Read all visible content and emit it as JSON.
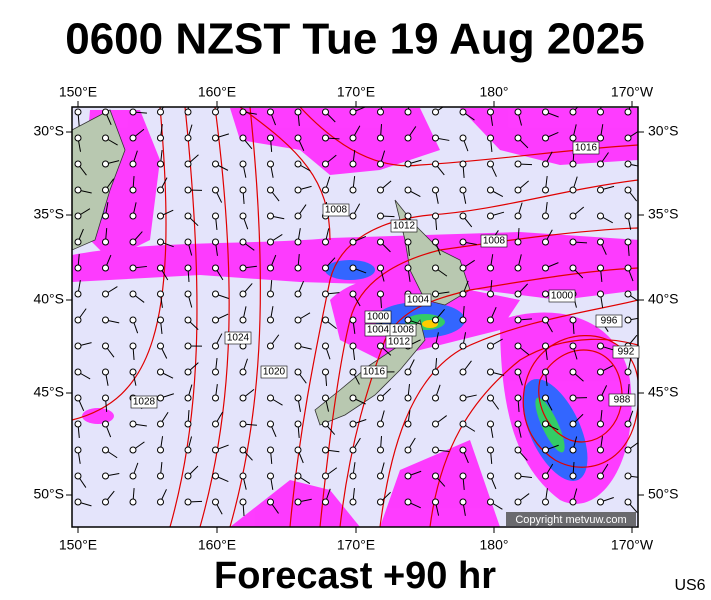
{
  "title": "0600 NZST Tue 19 Aug 2025",
  "lon_labels": [
    "150°E",
    "160°E",
    "170°E",
    "180°",
    "170°W"
  ],
  "lat_labels": [
    "30°S",
    "35°S",
    "40°S",
    "45°S",
    "50°S"
  ],
  "isobar_labels": [
    "1016",
    "1008",
    "1012",
    "1008",
    "1004",
    "1000",
    "1004",
    "1008",
    "1012",
    "1016",
    "1020",
    "1024",
    "1028",
    "1000",
    "996",
    "992",
    "988"
  ],
  "copyright": "Copyright metvuw.com",
  "footer": "Forecast +90 hr",
  "code": "US6"
}
